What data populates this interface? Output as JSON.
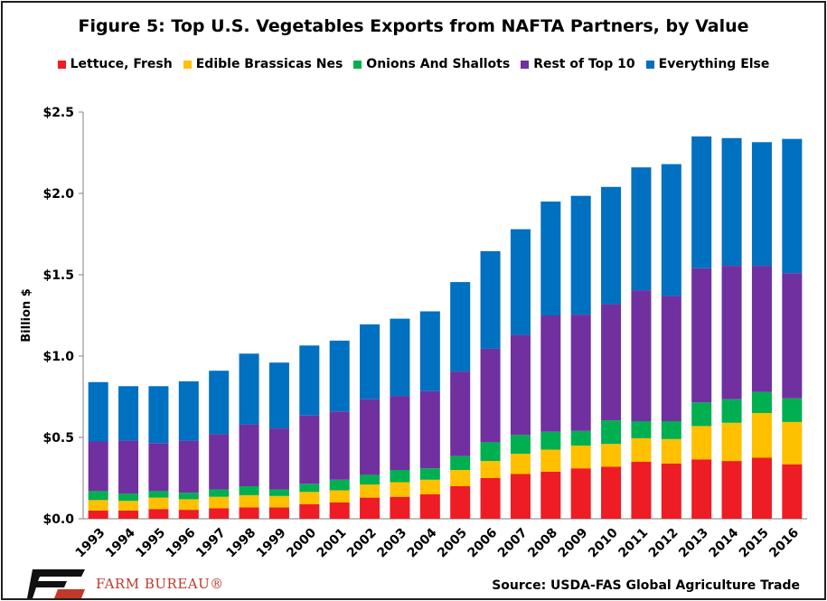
{
  "chart_data": {
    "type": "bar",
    "stacked": true,
    "title": "Figure 5: Top U.S. Vegetables Exports from NAFTA Partners, by Value",
    "ylabel": "Billion $",
    "xlabel": "",
    "ylim": [
      0,
      2.5
    ],
    "yticks": [
      0,
      0.5,
      1.0,
      1.5,
      2.0,
      2.5
    ],
    "ytick_labels": [
      "$0.0",
      "$0.5",
      "$1.0",
      "$1.5",
      "$2.0",
      "$2.5"
    ],
    "grid": false,
    "legend_position": "top",
    "categories": [
      "1993",
      "1994",
      "1995",
      "1996",
      "1997",
      "1998",
      "1999",
      "2000",
      "2001",
      "2002",
      "2003",
      "2004",
      "2005",
      "2006",
      "2007",
      "2008",
      "2009",
      "2010",
      "2011",
      "2012",
      "2013",
      "2014",
      "2015",
      "2016"
    ],
    "series": [
      {
        "name": "Lettuce, Fresh",
        "color": "#ee1c24",
        "values": [
          0.05,
          0.05,
          0.06,
          0.055,
          0.065,
          0.07,
          0.07,
          0.09,
          0.1,
          0.13,
          0.135,
          0.15,
          0.2,
          0.25,
          0.275,
          0.29,
          0.31,
          0.32,
          0.35,
          0.34,
          0.365,
          0.355,
          0.375,
          0.335
        ]
      },
      {
        "name": "Edible Brassicas Nes",
        "color": "#ffc000",
        "values": [
          0.065,
          0.06,
          0.07,
          0.065,
          0.07,
          0.075,
          0.07,
          0.075,
          0.075,
          0.08,
          0.09,
          0.09,
          0.1,
          0.105,
          0.125,
          0.135,
          0.14,
          0.14,
          0.145,
          0.15,
          0.205,
          0.235,
          0.275,
          0.26
        ]
      },
      {
        "name": "Onions And Shallots",
        "color": "#00b050",
        "values": [
          0.055,
          0.045,
          0.04,
          0.04,
          0.045,
          0.055,
          0.04,
          0.05,
          0.065,
          0.06,
          0.075,
          0.07,
          0.085,
          0.115,
          0.115,
          0.11,
          0.09,
          0.145,
          0.105,
          0.11,
          0.145,
          0.145,
          0.13,
          0.145
        ]
      },
      {
        "name": "Rest of Top 10",
        "color": "#7030a0",
        "values": [
          0.305,
          0.325,
          0.295,
          0.32,
          0.34,
          0.38,
          0.375,
          0.42,
          0.42,
          0.465,
          0.455,
          0.475,
          0.52,
          0.575,
          0.615,
          0.715,
          0.715,
          0.715,
          0.805,
          0.77,
          0.825,
          0.82,
          0.775,
          0.77
        ]
      },
      {
        "name": "Everything Else",
        "color": "#0070c0",
        "values": [
          0.365,
          0.335,
          0.35,
          0.365,
          0.39,
          0.435,
          0.405,
          0.43,
          0.435,
          0.46,
          0.475,
          0.49,
          0.55,
          0.6,
          0.65,
          0.7,
          0.73,
          0.72,
          0.755,
          0.81,
          0.81,
          0.785,
          0.76,
          0.825
        ]
      }
    ]
  },
  "source": "Source: USDA-FAS Global Agriculture Trade",
  "logo": {
    "name": "FARM BUREAU®",
    "icon": "farm-bureau-logo-icon"
  }
}
